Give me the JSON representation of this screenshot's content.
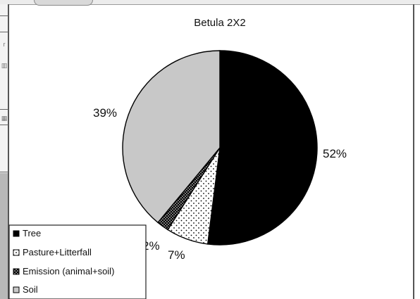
{
  "chart_data": {
    "type": "pie",
    "title": "Betula 2X2",
    "slices": [
      {
        "label": "Tree",
        "value": 52,
        "value_label": "52%",
        "fill": "#000000",
        "pattern": "solid"
      },
      {
        "label": "Pasture+Litterfall",
        "value": 7,
        "value_label": "7%",
        "fill": "#ffffff",
        "pattern": "dots-sparse"
      },
      {
        "label": "Emission (animal+soil)",
        "value": 2,
        "value_label": "2%",
        "fill": "#000000",
        "pattern": "dots-dense"
      },
      {
        "label": "Soil",
        "value": 39,
        "value_label": "39%",
        "fill": "#c8c8c8",
        "pattern": "solid"
      }
    ],
    "legend_position": "bottom-left",
    "start_angle": "12 o'clock, clockwise"
  },
  "colors": {
    "outline": "#000000",
    "soil_gray": "#c8c8c8",
    "frame": "#555555"
  }
}
